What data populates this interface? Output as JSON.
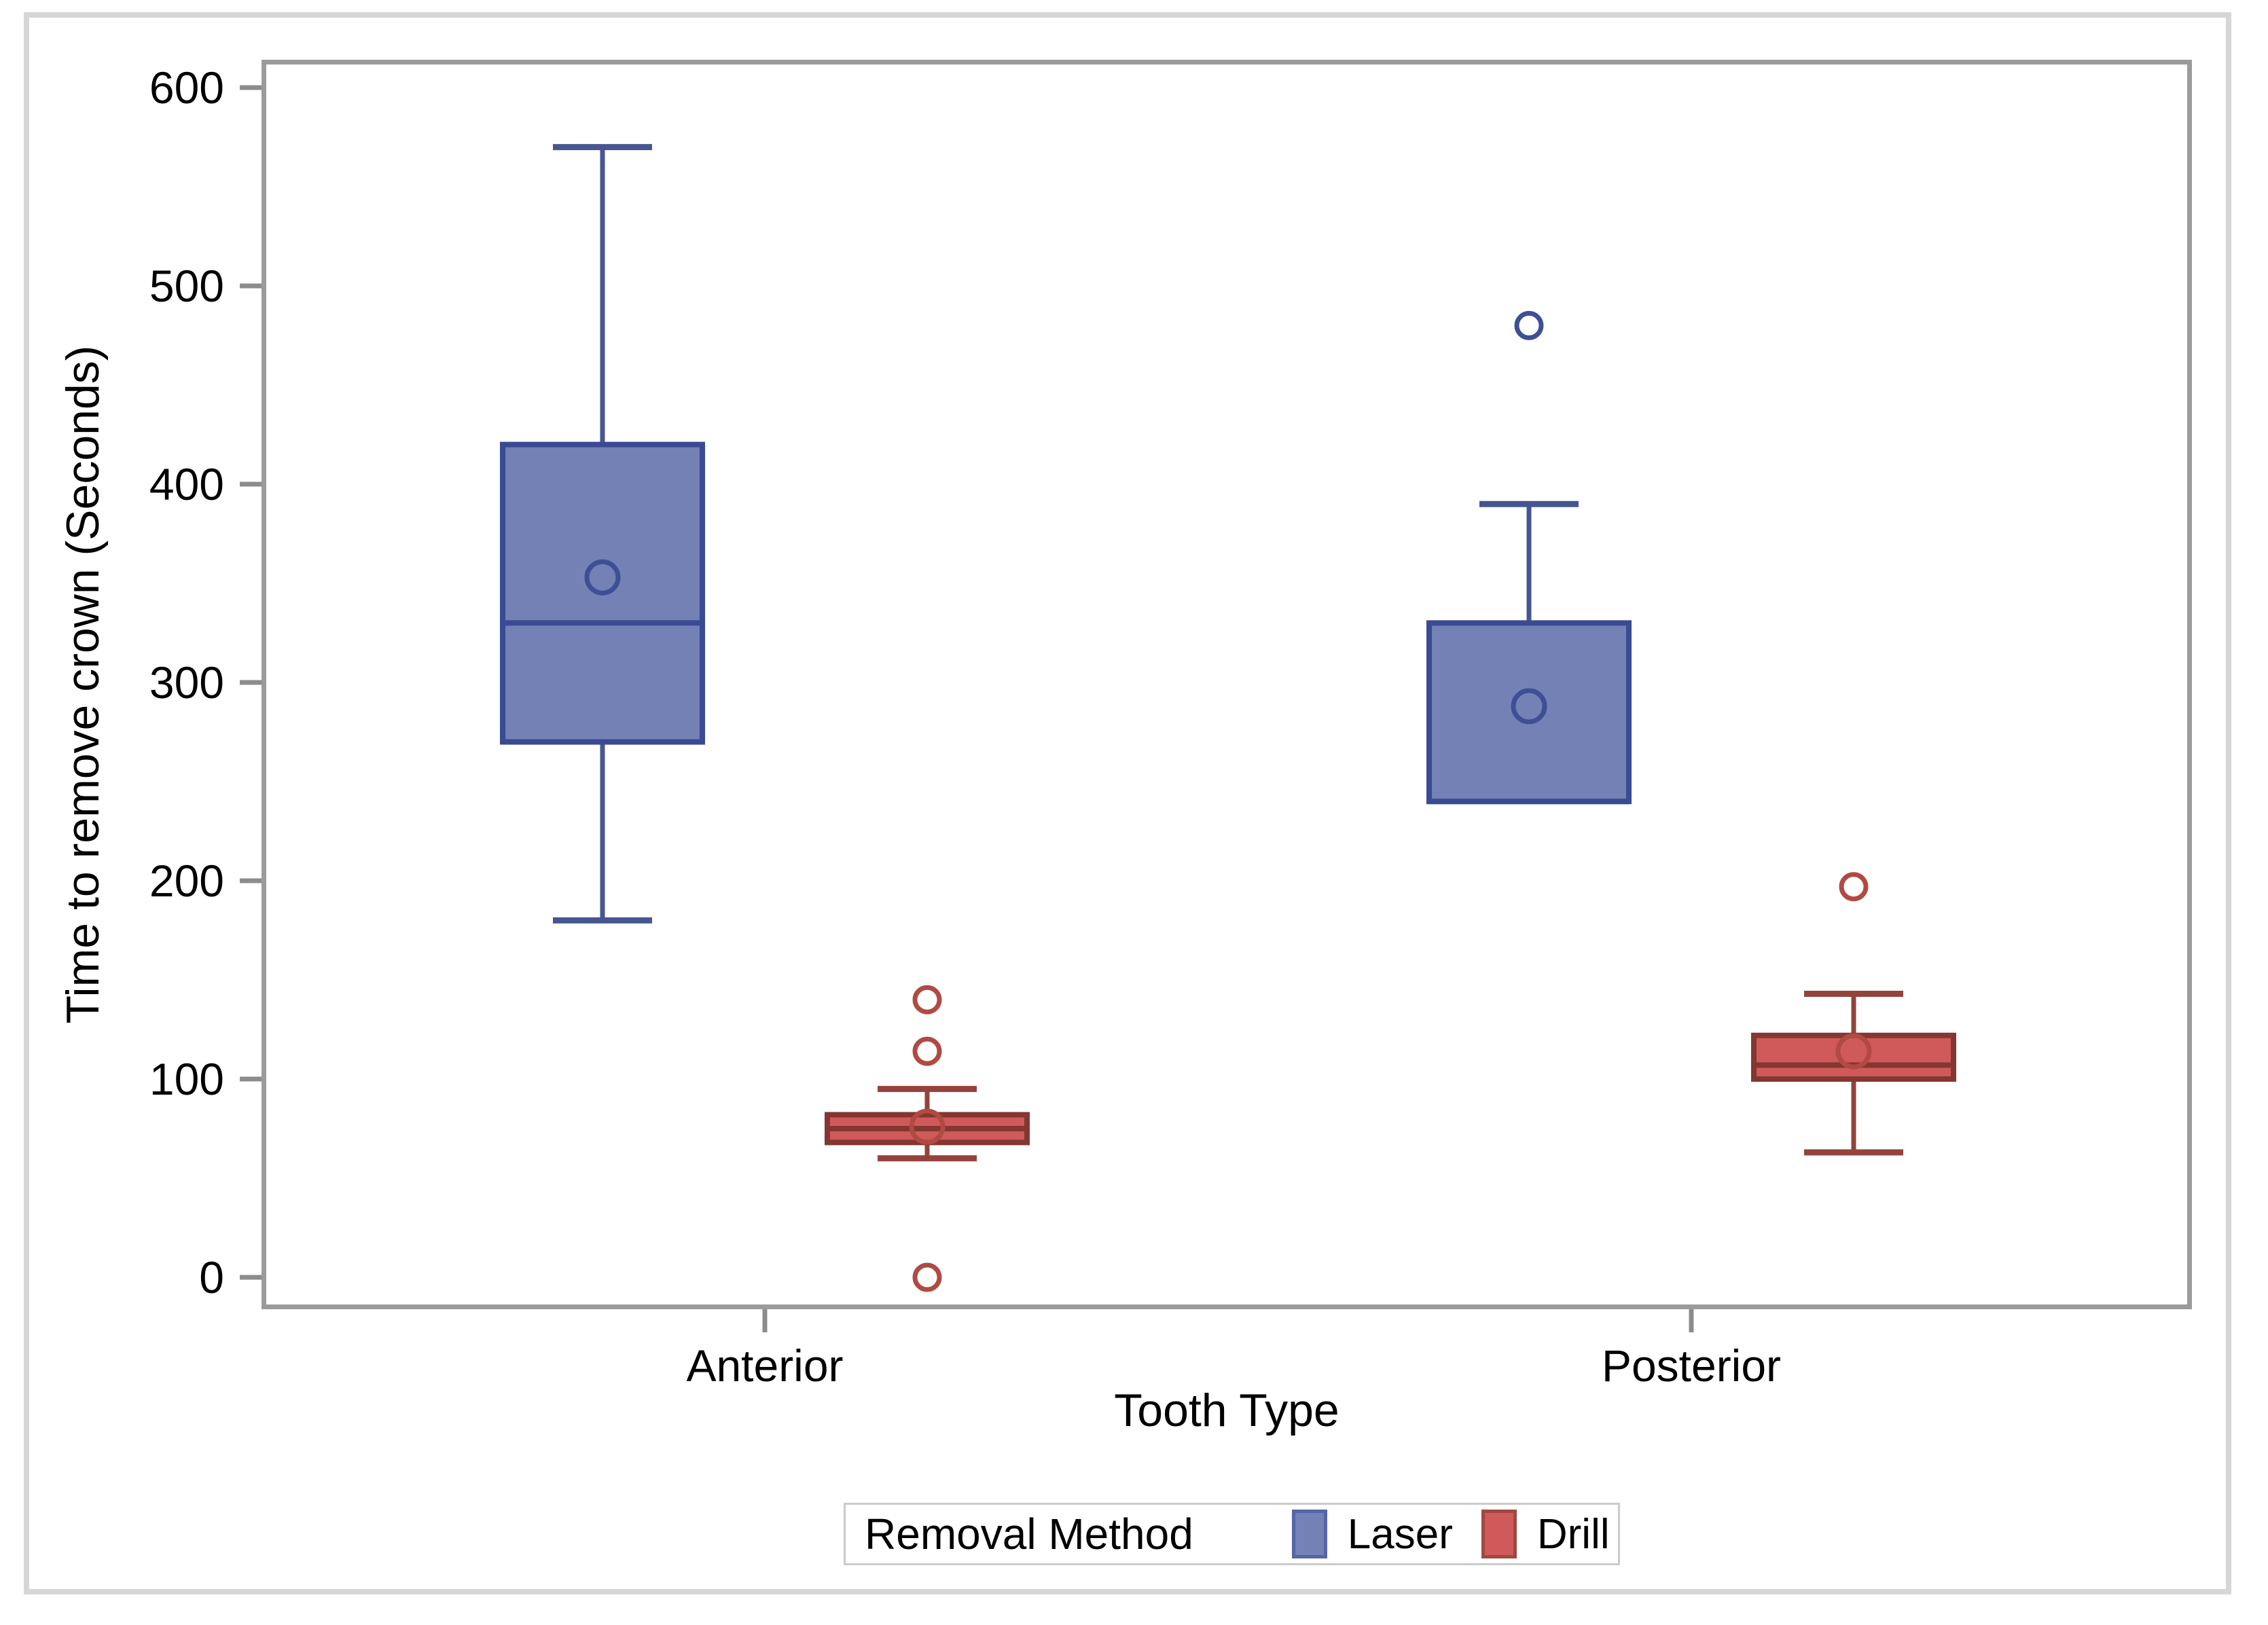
{
  "chart_data": {
    "type": "grouped_boxplot",
    "title": "",
    "xlabel": "Tooth Type",
    "ylabel": "Time to remove crown (Seconds)",
    "categories": [
      "Anterior",
      "Posterior"
    ],
    "legend": {
      "title": "Removal Method",
      "entries": [
        "Laser",
        "Drill"
      ],
      "position": "bottom-center"
    },
    "ylim": [
      0,
      600
    ],
    "yticks": [
      0,
      100,
      200,
      300,
      400,
      500,
      600
    ],
    "grid": false,
    "series": [
      {
        "category": "Anterior",
        "group": "Laser",
        "min": 180,
        "q1": 270,
        "median": 330,
        "q3": 420,
        "max": 570,
        "mean": 353,
        "outliers": []
      },
      {
        "category": "Anterior",
        "group": "Drill",
        "min": 60,
        "q1": 68,
        "median": 75,
        "q3": 82,
        "max": 95,
        "mean": 76,
        "outliers": [
          140,
          114,
          0
        ]
      },
      {
        "category": "Posterior",
        "group": "Laser",
        "min": 240,
        "q1": 240,
        "median": 240,
        "q3": 330,
        "max": 390,
        "mean": 288,
        "outliers": [
          480
        ]
      },
      {
        "category": "Posterior",
        "group": "Drill",
        "min": 63,
        "q1": 100,
        "median": 107,
        "q3": 122,
        "max": 143,
        "mean": 114,
        "outliers": [
          197
        ]
      }
    ],
    "colors": {
      "laser_fill": "#7381b5",
      "laser_edge": "#3a4a93",
      "laser_whisker": "#46568f",
      "laser_marker": "#3f4f96",
      "drill_fill": "#d05a5a",
      "drill_edge": "#833730",
      "drill_whisker": "#94433c",
      "drill_marker": "#b04a42",
      "axis_frame": "#9b9b9b",
      "tick": "#8c8c8c",
      "figure_border": "#d6d6d6",
      "text": "#000000",
      "background": "#ffffff"
    }
  }
}
